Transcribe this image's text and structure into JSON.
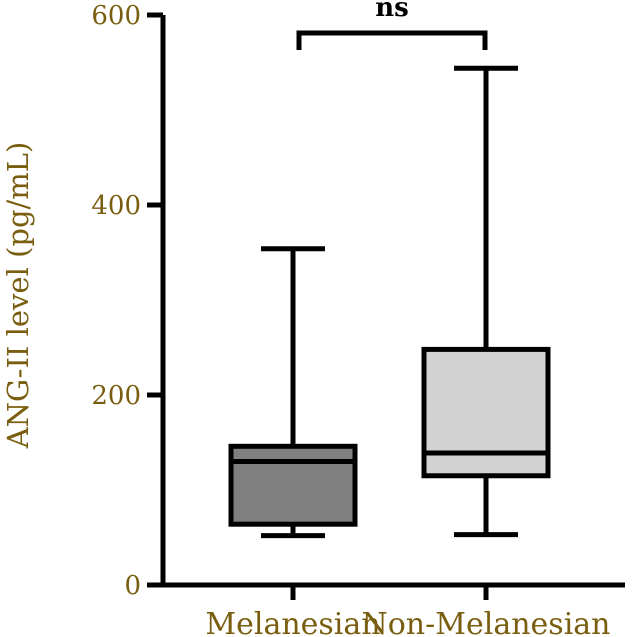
{
  "chart_data": {
    "type": "boxplot",
    "title": "",
    "xlabel": "",
    "ylabel": "ANG-II level (pg/mL)",
    "ylim": [
      0,
      600
    ],
    "yticks": [
      0,
      200,
      400,
      600
    ],
    "grid": false,
    "categories": [
      "Melanesian",
      "Non-Melanesian"
    ],
    "boxes": [
      {
        "name": "Melanesian",
        "min": 52,
        "q1": 64,
        "median": 130,
        "q3": 146,
        "max": 354,
        "color": "#808080"
      },
      {
        "name": "Non-Melanesian",
        "min": 53,
        "q1": 115,
        "median": 139,
        "q3": 248,
        "max": 544,
        "color": "#d3d3d3"
      }
    ],
    "annotations": [
      {
        "text": "ns",
        "between": [
          "Melanesian",
          "Non-Melanesian"
        ],
        "y": 585
      }
    ],
    "colors": {
      "axis": "#000000",
      "label": "#7a5e10"
    }
  }
}
